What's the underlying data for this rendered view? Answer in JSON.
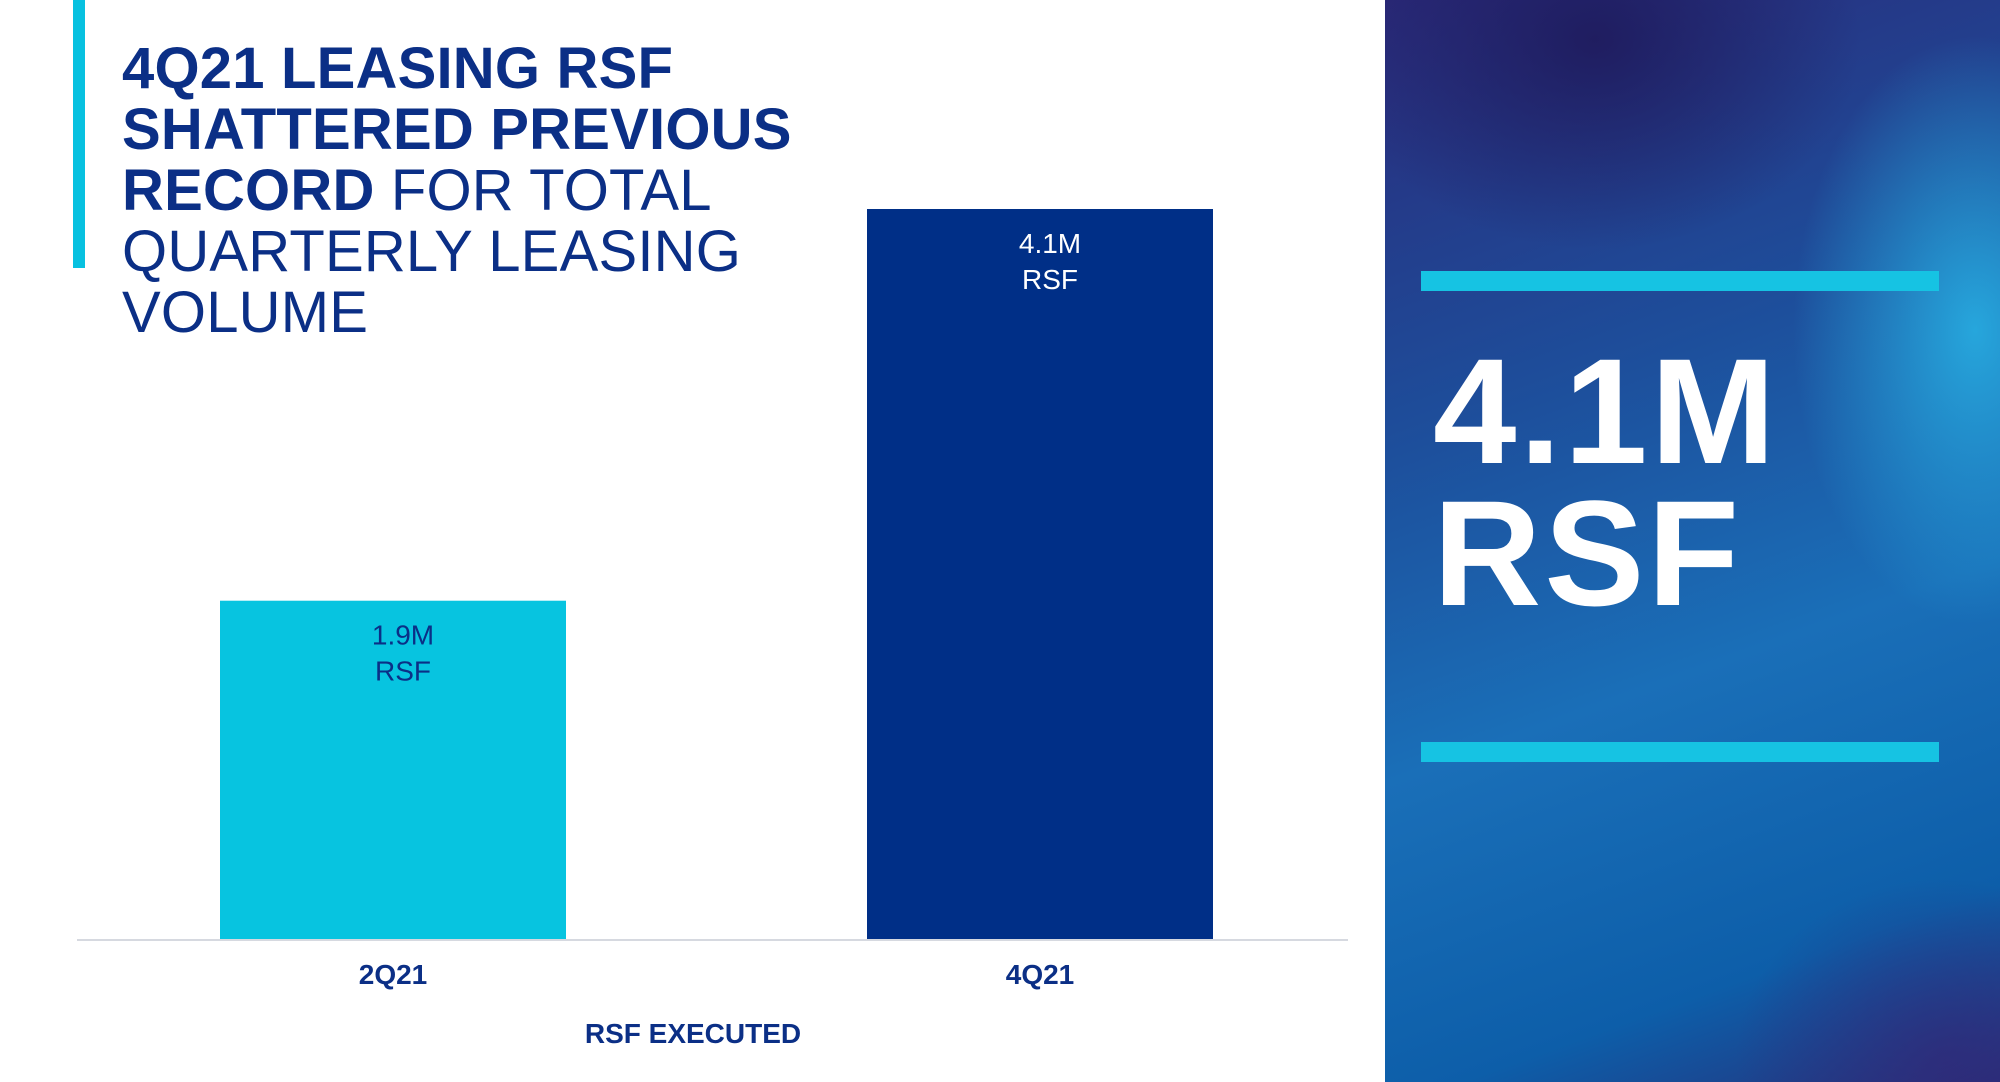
{
  "title": {
    "line1": "4Q21 LEASING RSF",
    "line2": "SHATTERED PREVIOUS",
    "line3_bold": "RECORD",
    "line3_light": " FOR TOTAL",
    "line4": "QUARTERLY LEASING",
    "line5": "VOLUME"
  },
  "highlight": {
    "value": "4.1M",
    "unit": "RSF"
  },
  "colors": {
    "title": "#0b2f86",
    "accent": "#07c1e0",
    "bar_2q21": "#07c4e0",
    "bar_4q21": "#002f87",
    "axis_text": "#0b2f86"
  },
  "chart_data": {
    "type": "bar",
    "categories": [
      "2Q21",
      "4Q21"
    ],
    "values": [
      1.9,
      4.1
    ],
    "value_labels": [
      {
        "value": "1.9M",
        "unit": "RSF"
      },
      {
        "value": "4.1M",
        "unit": "RSF"
      }
    ],
    "xlabel": "RSF EXECUTED",
    "ylabel": "",
    "ylim": [
      0,
      4.1
    ],
    "grid": false,
    "legend": "none"
  }
}
